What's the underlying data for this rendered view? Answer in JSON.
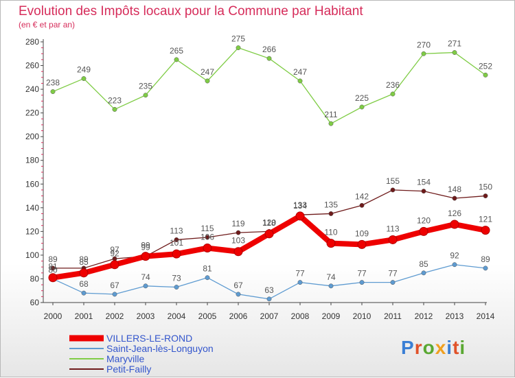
{
  "title": "Evolution des Impôts locaux pour la Commune par Habitant",
  "subtitle": "(en € et par an)",
  "logo": "Proxiti",
  "chart_data": {
    "type": "line",
    "title": "Evolution des Impôts locaux pour la Commune par Habitant",
    "ylabel": "(en € et par an)",
    "xlabel": "",
    "ylim": [
      60,
      280
    ],
    "yticks": [
      60,
      80,
      100,
      120,
      140,
      160,
      180,
      200,
      220,
      240,
      260,
      280
    ],
    "grid": false,
    "legend": "bottom-left",
    "x": [
      "2000",
      "2001",
      "2002",
      "2003",
      "2004",
      "2005",
      "2006",
      "2007",
      "2008",
      "2009",
      "2010",
      "2011",
      "2012",
      "2013",
      "2014"
    ],
    "series": [
      {
        "name": "Maryville",
        "color": "#7fcc45",
        "values": [
          238,
          249,
          223,
          235,
          265,
          247,
          275,
          266,
          247,
          211,
          225,
          236,
          270,
          271,
          252
        ]
      },
      {
        "name": "Petit-Failly",
        "color": "#6e1a1a",
        "values": [
          89,
          89,
          97,
          99,
          113,
          115,
          119,
          120,
          134,
          135,
          142,
          155,
          154,
          148,
          150
        ]
      },
      {
        "name": "Saint-Jean-lès-Longuyon",
        "color": "#5e9bd1",
        "values": [
          80,
          68,
          67,
          74,
          73,
          81,
          67,
          63,
          77,
          74,
          77,
          77,
          85,
          92,
          89
        ]
      },
      {
        "name": "VILLERS-LE-ROND",
        "color": "#ee0000",
        "values": [
          81,
          85,
          92,
          99,
          101,
          106,
          103,
          118,
          133,
          110,
          109,
          113,
          120,
          126,
          121
        ]
      }
    ],
    "legend_order": [
      "VILLERS-LE-ROND",
      "Saint-Jean-lès-Longuyon",
      "Maryville",
      "Petit-Failly"
    ]
  }
}
